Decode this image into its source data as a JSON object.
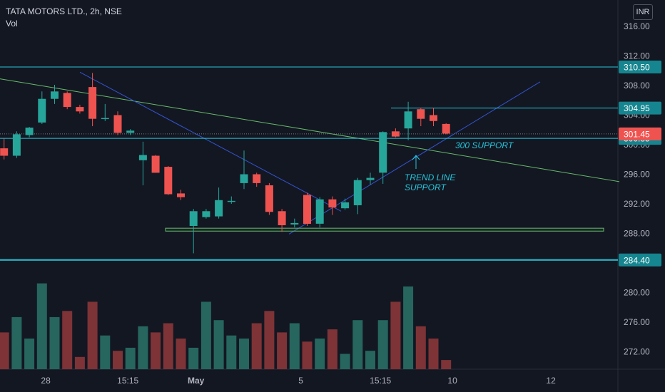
{
  "header": {
    "symbol_line": "TATA MOTORS LTD., 2h, NSE",
    "indicator": "Vol"
  },
  "currency_button": "INR",
  "annotations": {
    "support_300": "300 SUPPORT",
    "trend_line_1": "TREND LINE",
    "trend_line_2": "SUPPORT"
  },
  "chart_data": {
    "type": "candlestick",
    "y_axis": {
      "ticks": [
        "316.00",
        "312.00",
        "308.00",
        "304.00",
        "300.00",
        "296.00",
        "292.00",
        "288.00",
        "284.00",
        "280.00",
        "276.00",
        "272.00"
      ],
      "tick_values": [
        316,
        312,
        308,
        304,
        300,
        296,
        292,
        288,
        284,
        280,
        276,
        272
      ],
      "range": [
        269,
        318
      ]
    },
    "x_axis": {
      "labels": [
        "28",
        "15:15",
        "May",
        "5",
        "15:15",
        "10",
        "12"
      ],
      "label_bar_index": [
        3.3,
        9.8,
        15.2,
        23.5,
        29.8,
        35.5,
        43.3
      ]
    },
    "candles": [
      {
        "o": 299.5,
        "h": 300.8,
        "l": 298.0,
        "c": 298.5
      },
      {
        "o": 298.5,
        "h": 301.8,
        "l": 298.2,
        "c": 301.4
      },
      {
        "o": 301.3,
        "h": 302.4,
        "l": 301.0,
        "c": 302.3
      },
      {
        "o": 303.0,
        "h": 307.2,
        "l": 302.8,
        "c": 306.2
      },
      {
        "o": 306.2,
        "h": 308.1,
        "l": 305.5,
        "c": 307.2
      },
      {
        "o": 307.0,
        "h": 307.2,
        "l": 304.8,
        "c": 305.1
      },
      {
        "o": 305.1,
        "h": 305.4,
        "l": 304.2,
        "c": 304.5
      },
      {
        "o": 307.8,
        "h": 309.7,
        "l": 302.5,
        "c": 303.5
      },
      {
        "o": 303.5,
        "h": 305.5,
        "l": 303.2,
        "c": 303.6
      },
      {
        "o": 304.0,
        "h": 304.5,
        "l": 301.3,
        "c": 301.6
      },
      {
        "o": 301.6,
        "h": 302.1,
        "l": 301.3,
        "c": 301.9
      },
      {
        "o": 297.9,
        "h": 300.4,
        "l": 294.5,
        "c": 298.6
      },
      {
        "o": 298.5,
        "h": 298.6,
        "l": 296.2,
        "c": 296.2
      },
      {
        "o": 297.0,
        "h": 297.1,
        "l": 293.2,
        "c": 293.3
      },
      {
        "o": 293.4,
        "h": 293.9,
        "l": 292.5,
        "c": 292.9
      },
      {
        "o": 289.0,
        "h": 291.3,
        "l": 285.3,
        "c": 291.0
      },
      {
        "o": 290.2,
        "h": 291.3,
        "l": 290.0,
        "c": 291.0
      },
      {
        "o": 290.3,
        "h": 294.2,
        "l": 290.0,
        "c": 292.5
      },
      {
        "o": 292.3,
        "h": 293.0,
        "l": 292.0,
        "c": 292.4
      },
      {
        "o": 294.8,
        "h": 299.2,
        "l": 294.0,
        "c": 296.0
      },
      {
        "o": 296.0,
        "h": 296.2,
        "l": 294.3,
        "c": 294.8
      },
      {
        "o": 294.5,
        "h": 294.8,
        "l": 290.5,
        "c": 290.9
      },
      {
        "o": 291.0,
        "h": 291.3,
        "l": 288.2,
        "c": 289.1
      },
      {
        "o": 289.2,
        "h": 290.0,
        "l": 288.8,
        "c": 289.4
      },
      {
        "o": 293.2,
        "h": 293.5,
        "l": 289.0,
        "c": 289.3
      },
      {
        "o": 289.3,
        "h": 292.9,
        "l": 288.8,
        "c": 292.6
      },
      {
        "o": 292.6,
        "h": 293.0,
        "l": 290.5,
        "c": 291.5
      },
      {
        "o": 291.4,
        "h": 292.7,
        "l": 291.2,
        "c": 292.2
      },
      {
        "o": 291.8,
        "h": 295.5,
        "l": 290.6,
        "c": 295.2
      },
      {
        "o": 295.2,
        "h": 296.2,
        "l": 294.6,
        "c": 295.5
      },
      {
        "o": 296.2,
        "h": 301.8,
        "l": 294.7,
        "c": 301.7
      },
      {
        "o": 301.8,
        "h": 302.2,
        "l": 301.0,
        "c": 301.1
      },
      {
        "o": 302.2,
        "h": 305.8,
        "l": 300.6,
        "c": 304.5
      },
      {
        "o": 304.8,
        "h": 305.0,
        "l": 302.5,
        "c": 303.5
      },
      {
        "o": 304.0,
        "h": 305.0,
        "l": 302.5,
        "c": 303.2
      },
      {
        "o": 302.8,
        "h": 302.9,
        "l": 301.4,
        "c": 301.5
      }
    ],
    "volume": [
      12,
      17,
      10,
      28,
      17,
      19,
      4,
      22,
      11,
      6,
      7,
      14,
      12,
      15,
      10,
      7,
      22,
      16,
      11,
      10,
      15,
      19,
      12,
      15,
      9,
      10,
      13,
      5,
      16,
      6,
      16,
      22,
      27,
      14,
      10,
      3
    ],
    "price_levels": [
      {
        "label": "310.50",
        "value": 310.5,
        "color": "#26c6da"
      },
      {
        "label": "304.95",
        "value": 304.95,
        "color": "#26c6da"
      },
      {
        "label": "300.85",
        "value": 300.85,
        "color": "#26c6da"
      },
      {
        "label": "284.40",
        "value": 284.4,
        "color": "#26c6da"
      }
    ],
    "last_price": {
      "label": "301.45",
      "value": 301.45,
      "color": "#ef5350"
    },
    "colors": {
      "background": "#131722",
      "up": "#26a69a",
      "down": "#ef5350",
      "vol_up": "#26665f",
      "vol_down": "#7e3336",
      "axis_text": "#b2b5be",
      "level_line": "#26c6da",
      "descending_trend": "#66bb6a",
      "blue_trend": "#3454d1",
      "support_box": "#66bb6a",
      "annotation_text": "#26c6da"
    }
  }
}
